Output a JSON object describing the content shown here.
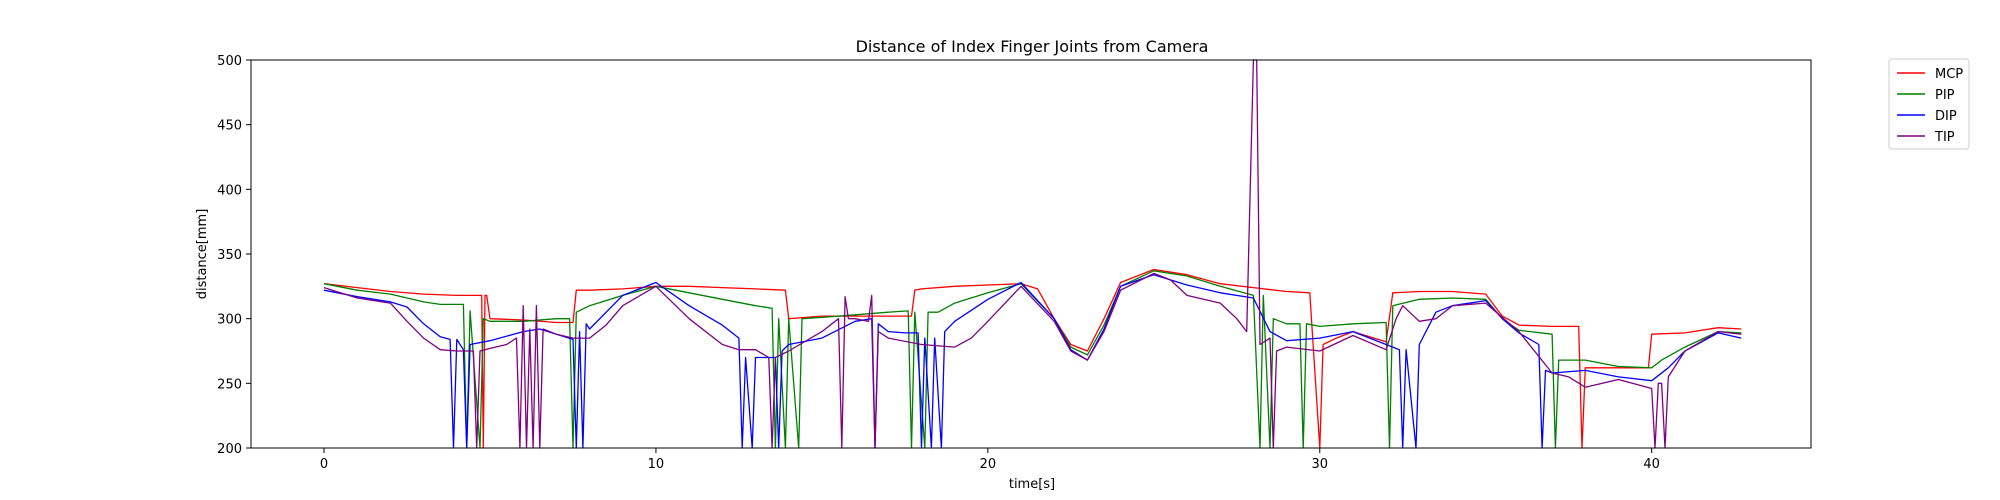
{
  "chart_data": {
    "type": "line",
    "title": "Distance of Index Finger Joints from Camera",
    "xlabel": "time[s]",
    "ylabel": "distance[mm]",
    "xlim": [
      -2.2,
      44.8
    ],
    "ylim": [
      200,
      500
    ],
    "xticks": [
      0,
      10,
      20,
      30,
      40
    ],
    "yticks": [
      200,
      250,
      300,
      350,
      400,
      450,
      500
    ],
    "grid": false,
    "legend_position": "outside-top-right",
    "series": [
      {
        "name": "MCP",
        "color": "#ff0000",
        "points": [
          [
            0,
            327
          ],
          [
            1,
            324
          ],
          [
            2,
            321
          ],
          [
            3,
            319
          ],
          [
            4,
            318
          ],
          [
            4.75,
            318
          ],
          [
            4.8,
            200
          ],
          [
            4.85,
            318
          ],
          [
            4.9,
            318
          ],
          [
            5,
            300
          ],
          [
            6,
            299
          ],
          [
            7,
            297
          ],
          [
            7.5,
            297
          ],
          [
            7.6,
            322
          ],
          [
            8,
            322
          ],
          [
            9,
            323
          ],
          [
            10,
            325
          ],
          [
            11,
            325
          ],
          [
            12,
            324
          ],
          [
            13,
            323
          ],
          [
            13.9,
            322
          ],
          [
            14.0,
            300
          ],
          [
            15,
            302
          ],
          [
            16,
            302
          ],
          [
            17,
            302
          ],
          [
            17.7,
            302
          ],
          [
            17.8,
            322
          ],
          [
            18,
            323
          ],
          [
            19,
            325
          ],
          [
            20,
            326
          ],
          [
            21,
            327
          ],
          [
            21.5,
            323
          ],
          [
            22,
            300
          ],
          [
            22.5,
            280
          ],
          [
            23,
            275
          ],
          [
            23.5,
            300
          ],
          [
            24,
            328
          ],
          [
            25,
            338
          ],
          [
            26,
            334
          ],
          [
            27,
            327
          ],
          [
            28,
            324
          ],
          [
            29,
            321
          ],
          [
            29.7,
            320
          ],
          [
            29.8,
            280
          ],
          [
            30,
            200
          ],
          [
            30.1,
            280
          ],
          [
            30.5,
            285
          ],
          [
            31,
            290
          ],
          [
            32,
            282
          ],
          [
            32.2,
            320
          ],
          [
            33,
            321
          ],
          [
            34,
            321
          ],
          [
            35,
            319
          ],
          [
            35.5,
            302
          ],
          [
            36,
            295
          ],
          [
            37,
            294
          ],
          [
            37.8,
            294
          ],
          [
            37.9,
            200
          ],
          [
            38,
            262
          ],
          [
            39,
            262
          ],
          [
            39.9,
            262
          ],
          [
            40.0,
            288
          ],
          [
            41,
            289
          ],
          [
            42,
            293
          ],
          [
            42.7,
            292
          ]
        ]
      },
      {
        "name": "PIP",
        "color": "#008000",
        "points": [
          [
            0,
            327
          ],
          [
            1,
            322
          ],
          [
            2,
            319
          ],
          [
            3,
            313
          ],
          [
            3.5,
            311
          ],
          [
            4,
            311
          ],
          [
            4.2,
            311
          ],
          [
            4.3,
            200
          ],
          [
            4.4,
            306
          ],
          [
            4.7,
            200
          ],
          [
            4.8,
            300
          ],
          [
            5,
            298
          ],
          [
            6,
            298
          ],
          [
            7,
            300
          ],
          [
            7.4,
            300
          ],
          [
            7.5,
            200
          ],
          [
            7.6,
            305
          ],
          [
            8,
            310
          ],
          [
            9,
            318
          ],
          [
            10,
            325
          ],
          [
            11,
            320
          ],
          [
            12,
            315
          ],
          [
            13,
            310
          ],
          [
            13.5,
            308
          ],
          [
            13.6,
            200
          ],
          [
            13.7,
            300
          ],
          [
            13.9,
            200
          ],
          [
            14.0,
            300
          ],
          [
            14.3,
            200
          ],
          [
            14.4,
            300
          ],
          [
            15,
            301
          ],
          [
            16,
            303
          ],
          [
            17,
            305
          ],
          [
            17.6,
            306
          ],
          [
            17.7,
            200
          ],
          [
            17.8,
            305
          ],
          [
            18.1,
            200
          ],
          [
            18.2,
            305
          ],
          [
            18.5,
            305
          ],
          [
            19,
            312
          ],
          [
            20,
            320
          ],
          [
            21,
            327
          ],
          [
            22,
            300
          ],
          [
            22.5,
            278
          ],
          [
            23,
            272
          ],
          [
            23.5,
            295
          ],
          [
            24,
            325
          ],
          [
            25,
            337
          ],
          [
            26,
            333
          ],
          [
            27,
            325
          ],
          [
            28,
            318
          ],
          [
            28.2,
            200
          ],
          [
            28.3,
            318
          ],
          [
            28.5,
            200
          ],
          [
            28.6,
            300
          ],
          [
            29,
            296
          ],
          [
            29.4,
            296
          ],
          [
            29.5,
            200
          ],
          [
            29.6,
            296
          ],
          [
            30,
            294
          ],
          [
            31,
            296
          ],
          [
            32,
            297
          ],
          [
            32.1,
            200
          ],
          [
            32.2,
            310
          ],
          [
            33,
            315
          ],
          [
            34,
            316
          ],
          [
            35,
            315
          ],
          [
            35.5,
            300
          ],
          [
            36,
            291
          ],
          [
            37,
            288
          ],
          [
            37.1,
            200
          ],
          [
            37.2,
            268
          ],
          [
            38,
            268
          ],
          [
            39,
            263
          ],
          [
            40,
            262
          ],
          [
            40.3,
            268
          ],
          [
            41,
            278
          ],
          [
            42,
            290
          ],
          [
            42.7,
            289
          ]
        ]
      },
      {
        "name": "DIP",
        "color": "#0000ff",
        "points": [
          [
            0,
            322
          ],
          [
            1,
            317
          ],
          [
            2,
            313
          ],
          [
            2.5,
            309
          ],
          [
            3,
            296
          ],
          [
            3.5,
            286
          ],
          [
            3.8,
            284
          ],
          [
            3.9,
            200
          ],
          [
            4.0,
            284
          ],
          [
            4.2,
            276
          ],
          [
            4.3,
            200
          ],
          [
            4.4,
            280
          ],
          [
            5,
            283
          ],
          [
            6,
            290
          ],
          [
            6.5,
            292
          ],
          [
            7,
            288
          ],
          [
            7.5,
            284
          ],
          [
            7.6,
            200
          ],
          [
            7.7,
            290
          ],
          [
            7.8,
            200
          ],
          [
            7.9,
            296
          ],
          [
            8,
            292
          ],
          [
            9,
            318
          ],
          [
            10,
            328
          ],
          [
            11,
            310
          ],
          [
            12,
            295
          ],
          [
            12.5,
            285
          ],
          [
            12.6,
            200
          ],
          [
            12.7,
            270
          ],
          [
            12.9,
            200
          ],
          [
            13.0,
            270
          ],
          [
            13.6,
            270
          ],
          [
            13.7,
            200
          ],
          [
            13.8,
            275
          ],
          [
            14,
            280
          ],
          [
            15,
            285
          ],
          [
            16,
            298
          ],
          [
            16.5,
            300
          ],
          [
            16.6,
            200
          ],
          [
            16.7,
            296
          ],
          [
            17,
            290
          ],
          [
            17.5,
            289
          ],
          [
            17.9,
            289
          ],
          [
            18.0,
            200
          ],
          [
            18.1,
            285
          ],
          [
            18.3,
            200
          ],
          [
            18.4,
            285
          ],
          [
            18.6,
            200
          ],
          [
            18.7,
            290
          ],
          [
            19,
            298
          ],
          [
            20,
            315
          ],
          [
            21,
            328
          ],
          [
            22,
            300
          ],
          [
            22.5,
            276
          ],
          [
            23,
            268
          ],
          [
            23.5,
            292
          ],
          [
            24,
            325
          ],
          [
            25,
            334
          ],
          [
            26,
            326
          ],
          [
            27,
            320
          ],
          [
            28,
            316
          ],
          [
            28.5,
            290
          ],
          [
            29,
            283
          ],
          [
            30,
            285
          ],
          [
            31,
            290
          ],
          [
            32,
            280
          ],
          [
            32.4,
            276
          ],
          [
            32.5,
            200
          ],
          [
            32.6,
            276
          ],
          [
            32.9,
            200
          ],
          [
            33.0,
            280
          ],
          [
            33.5,
            305
          ],
          [
            34,
            310
          ],
          [
            35,
            314
          ],
          [
            35.5,
            300
          ],
          [
            36,
            289
          ],
          [
            36.6,
            280
          ],
          [
            36.7,
            200
          ],
          [
            36.8,
            260
          ],
          [
            37,
            258
          ],
          [
            38,
            260
          ],
          [
            39,
            255
          ],
          [
            40,
            252
          ],
          [
            40.5,
            262
          ],
          [
            41,
            275
          ],
          [
            42,
            289
          ],
          [
            42.7,
            285
          ]
        ]
      },
      {
        "name": "TIP",
        "color": "#800080",
        "points": [
          [
            0,
            324
          ],
          [
            1,
            316
          ],
          [
            2,
            312
          ],
          [
            2.5,
            298
          ],
          [
            3,
            285
          ],
          [
            3.5,
            276
          ],
          [
            4,
            275
          ],
          [
            4.5,
            275
          ],
          [
            4.6,
            200
          ],
          [
            4.7,
            275
          ],
          [
            5,
            277
          ],
          [
            5.5,
            280
          ],
          [
            5.8,
            285
          ],
          [
            5.9,
            200
          ],
          [
            6.0,
            310
          ],
          [
            6.1,
            200
          ],
          [
            6.2,
            292
          ],
          [
            6.3,
            200
          ],
          [
            6.4,
            310
          ],
          [
            6.5,
            200
          ],
          [
            6.6,
            292
          ],
          [
            7,
            288
          ],
          [
            7.5,
            285
          ],
          [
            8,
            285
          ],
          [
            8.5,
            295
          ],
          [
            9,
            310
          ],
          [
            10,
            325
          ],
          [
            11,
            300
          ],
          [
            12,
            280
          ],
          [
            12.5,
            276
          ],
          [
            13.0,
            276
          ],
          [
            13.4,
            270
          ],
          [
            13.5,
            200
          ],
          [
            13.6,
            270
          ],
          [
            14,
            275
          ],
          [
            15,
            290
          ],
          [
            15.5,
            300
          ],
          [
            15.6,
            200
          ],
          [
            15.7,
            317
          ],
          [
            15.8,
            300
          ],
          [
            16,
            300
          ],
          [
            16.4,
            298
          ],
          [
            16.5,
            318
          ],
          [
            16.6,
            200
          ],
          [
            16.7,
            290
          ],
          [
            17,
            285
          ],
          [
            18,
            280
          ],
          [
            19,
            278
          ],
          [
            19.5,
            285
          ],
          [
            20,
            298
          ],
          [
            21,
            325
          ],
          [
            22,
            298
          ],
          [
            22.5,
            275
          ],
          [
            23,
            268
          ],
          [
            23.5,
            290
          ],
          [
            24,
            322
          ],
          [
            25,
            335
          ],
          [
            25.5,
            330
          ],
          [
            26,
            318
          ],
          [
            27,
            312
          ],
          [
            27.5,
            300
          ],
          [
            27.8,
            290
          ],
          [
            28.0,
            500
          ],
          [
            28.1,
            500
          ],
          [
            28.2,
            280
          ],
          [
            28.5,
            285
          ],
          [
            28.6,
            200
          ],
          [
            28.7,
            275
          ],
          [
            29,
            278
          ],
          [
            30,
            275
          ],
          [
            31,
            287
          ],
          [
            32,
            276
          ],
          [
            32.3,
            300
          ],
          [
            32.5,
            310
          ],
          [
            33,
            298
          ],
          [
            33.5,
            300
          ],
          [
            34,
            310
          ],
          [
            35,
            312
          ],
          [
            36,
            290
          ],
          [
            37,
            258
          ],
          [
            37.5,
            255
          ],
          [
            38,
            247
          ],
          [
            39,
            253
          ],
          [
            40,
            246
          ],
          [
            40.1,
            200
          ],
          [
            40.2,
            250
          ],
          [
            40.3,
            250
          ],
          [
            40.4,
            200
          ],
          [
            40.5,
            255
          ],
          [
            41,
            275
          ],
          [
            42,
            290
          ],
          [
            42.7,
            288
          ]
        ]
      }
    ]
  }
}
